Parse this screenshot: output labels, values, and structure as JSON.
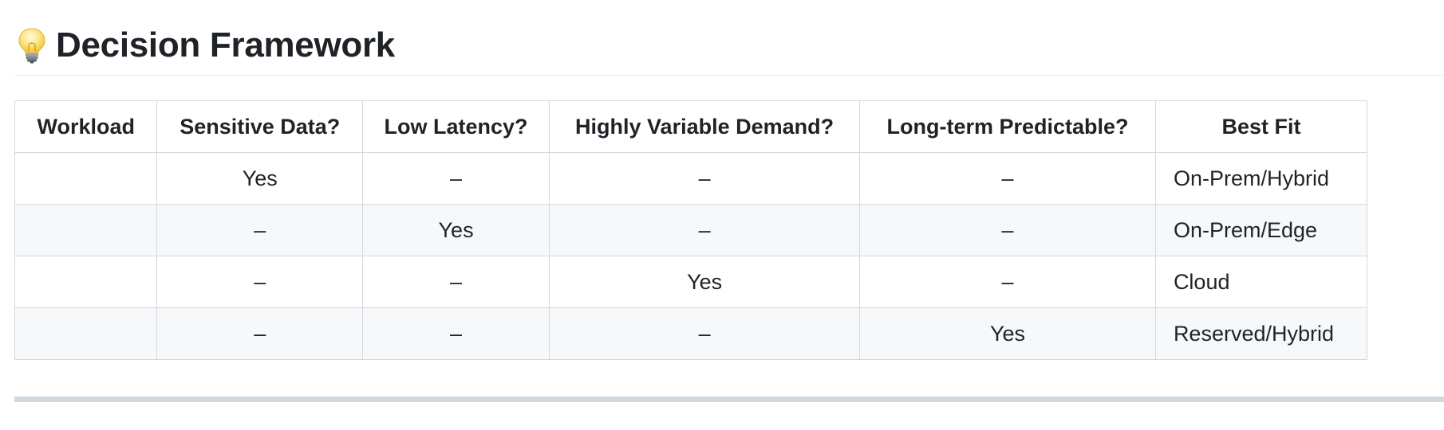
{
  "section": {
    "icon": "lightbulb-icon",
    "title": "Decision Framework"
  },
  "table": {
    "headers": [
      "Workload",
      "Sensitive Data?",
      "Low Latency?",
      "Highly Variable Demand?",
      "Long-term Predictable?",
      "Best Fit"
    ],
    "rows": [
      [
        "",
        "Yes",
        "–",
        "–",
        "–",
        "On-Prem/Hybrid"
      ],
      [
        "",
        "–",
        "Yes",
        "–",
        "–",
        "On-Prem/Edge"
      ],
      [
        "",
        "–",
        "–",
        "Yes",
        "–",
        "Cloud"
      ],
      [
        "",
        "–",
        "–",
        "–",
        "Yes",
        "Reserved/Hybrid"
      ]
    ]
  },
  "colors": {
    "text": "#1f2328",
    "border": "#d5d9de",
    "stripe": "#f6f8fa",
    "rule": "#d1d9e0"
  }
}
